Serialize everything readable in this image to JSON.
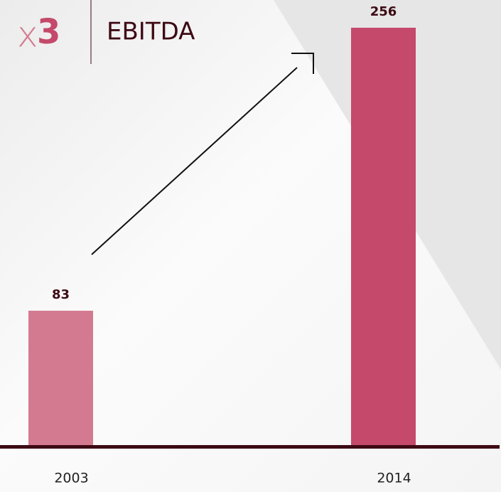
{
  "chart_data": {
    "type": "bar",
    "multiplier": {
      "symbol": "x",
      "factor": "3"
    },
    "title": "EBITDA",
    "categories": [
      "2003",
      "2014"
    ],
    "values": [
      83,
      256
    ],
    "colors": [
      "#d37a90",
      "#c4496a"
    ]
  }
}
